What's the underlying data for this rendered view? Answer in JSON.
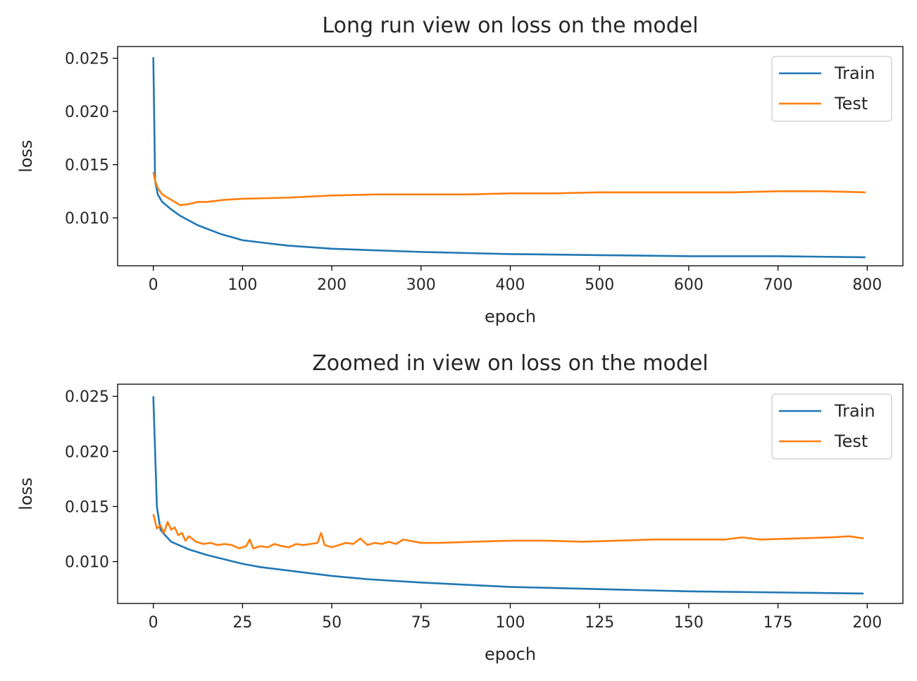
{
  "chart_data": [
    {
      "type": "line",
      "title": "Long run view on loss on the model",
      "xlabel": "epoch",
      "ylabel": "loss",
      "xlim": [
        -40,
        840
      ],
      "ylim": [
        0.0055,
        0.0261
      ],
      "xticks": [
        0,
        100,
        200,
        300,
        400,
        500,
        600,
        700,
        800
      ],
      "xtick_labels": [
        "0",
        "100",
        "200",
        "300",
        "400",
        "500",
        "600",
        "700",
        "800"
      ],
      "yticks": [
        0.01,
        0.015,
        0.02,
        0.025
      ],
      "ytick_labels": [
        "0.010",
        "0.015",
        "0.020",
        "0.025"
      ],
      "grid": false,
      "legend_position": "top-right",
      "series": [
        {
          "name": "Train",
          "color": "#1f77b4",
          "x": [
            0,
            2,
            5,
            10,
            20,
            30,
            50,
            75,
            100,
            150,
            200,
            300,
            400,
            500,
            600,
            700,
            798
          ],
          "y": [
            0.0251,
            0.0135,
            0.0122,
            0.0115,
            0.0108,
            0.0102,
            0.0093,
            0.0085,
            0.0079,
            0.0074,
            0.0071,
            0.0068,
            0.0066,
            0.0065,
            0.0064,
            0.0064,
            0.0063
          ]
        },
        {
          "name": "Test",
          "color": "#ff7f0e",
          "x": [
            0,
            2,
            5,
            10,
            20,
            30,
            40,
            50,
            60,
            80,
            100,
            150,
            200,
            250,
            300,
            350,
            400,
            450,
            500,
            550,
            600,
            650,
            700,
            750,
            798
          ],
          "y": [
            0.0143,
            0.0135,
            0.0128,
            0.0122,
            0.0117,
            0.0112,
            0.0113,
            0.0115,
            0.0115,
            0.0117,
            0.0118,
            0.0119,
            0.0121,
            0.0122,
            0.0122,
            0.0122,
            0.0123,
            0.0123,
            0.0124,
            0.0124,
            0.0124,
            0.0124,
            0.0125,
            0.0125,
            0.0124
          ]
        }
      ]
    },
    {
      "type": "line",
      "title": "Zoomed in view on loss on the model",
      "xlabel": "epoch",
      "ylabel": "loss",
      "xlim": [
        -10,
        210
      ],
      "ylim": [
        0.0062,
        0.0261
      ],
      "xticks": [
        0,
        25,
        50,
        75,
        100,
        125,
        150,
        175,
        200
      ],
      "xtick_labels": [
        "0",
        "25",
        "50",
        "75",
        "100",
        "125",
        "150",
        "175",
        "200"
      ],
      "yticks": [
        0.01,
        0.015,
        0.02,
        0.025
      ],
      "ytick_labels": [
        "0.010",
        "0.015",
        "0.020",
        "0.025"
      ],
      "grid": false,
      "legend_position": "top-right",
      "series": [
        {
          "name": "Train",
          "color": "#1f77b4",
          "x": [
            0,
            1,
            2,
            3,
            5,
            10,
            15,
            20,
            25,
            30,
            40,
            50,
            60,
            75,
            100,
            125,
            150,
            175,
            199
          ],
          "y": [
            0.025,
            0.015,
            0.0129,
            0.0125,
            0.0118,
            0.0111,
            0.0106,
            0.0102,
            0.0098,
            0.0095,
            0.0091,
            0.0087,
            0.0084,
            0.0081,
            0.0077,
            0.0075,
            0.0073,
            0.0072,
            0.0071
          ]
        },
        {
          "name": "Test",
          "color": "#ff7f0e",
          "x": [
            0,
            1,
            2,
            3,
            4,
            5,
            6,
            7,
            8,
            9,
            10,
            12,
            14,
            16,
            18,
            20,
            22,
            24,
            26,
            27,
            28,
            30,
            32,
            34,
            36,
            38,
            40,
            42,
            44,
            46,
            47,
            48,
            50,
            52,
            54,
            56,
            58,
            60,
            62,
            64,
            66,
            68,
            70,
            75,
            80,
            90,
            100,
            110,
            120,
            130,
            140,
            150,
            160,
            165,
            170,
            180,
            190,
            195,
            199
          ],
          "y": [
            0.0143,
            0.013,
            0.0133,
            0.0126,
            0.0136,
            0.0129,
            0.0131,
            0.0124,
            0.0126,
            0.0119,
            0.0123,
            0.0118,
            0.0116,
            0.0117,
            0.0115,
            0.0116,
            0.0115,
            0.0112,
            0.0114,
            0.012,
            0.0112,
            0.0114,
            0.0113,
            0.0116,
            0.0114,
            0.0113,
            0.0116,
            0.0115,
            0.0116,
            0.0117,
            0.0126,
            0.0115,
            0.0113,
            0.0115,
            0.0117,
            0.0116,
            0.0121,
            0.0115,
            0.0117,
            0.0116,
            0.0118,
            0.0116,
            0.012,
            0.0117,
            0.0117,
            0.0118,
            0.0119,
            0.0119,
            0.0118,
            0.0119,
            0.012,
            0.012,
            0.012,
            0.0122,
            0.012,
            0.0121,
            0.0122,
            0.0123,
            0.0121
          ]
        }
      ]
    }
  ]
}
